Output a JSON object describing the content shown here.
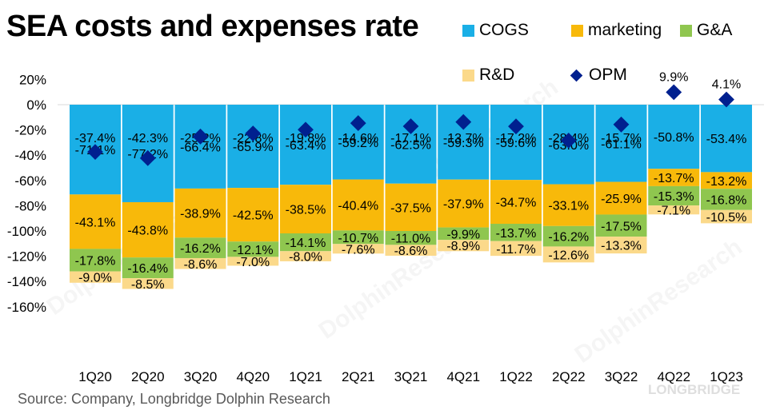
{
  "title": "SEA costs and expenses rate",
  "source": "Source: Company, Longbridge Dolphin Research",
  "watermark": {
    "text1": "DolphinResearch",
    "text2": "LONGBRIDGE"
  },
  "colors": {
    "cogs": "#1aafe6",
    "marketing": "#f8b90a",
    "ga": "#8fc64f",
    "rd": "#fbd98a",
    "opm": "#00208f"
  },
  "chart_data": {
    "type": "bar",
    "stacked": true,
    "title": "SEA costs and expenses rate",
    "categories": [
      "1Q20",
      "2Q20",
      "3Q20",
      "4Q20",
      "1Q21",
      "2Q21",
      "3Q21",
      "4Q21",
      "1Q22",
      "2Q22",
      "3Q22",
      "4Q22",
      "1Q23"
    ],
    "series": [
      {
        "name": "COGS",
        "values": [
          -71.1,
          -77.2,
          -66.4,
          -65.9,
          -63.4,
          -59.2,
          -62.5,
          -59.3,
          -59.6,
          -63.0,
          -61.1,
          -50.8,
          -53.4
        ]
      },
      {
        "name": "marketing",
        "values": [
          -43.1,
          -43.8,
          -38.9,
          -42.5,
          -38.5,
          -40.4,
          -37.5,
          -37.9,
          -34.7,
          -33.1,
          -25.9,
          -13.7,
          -13.2
        ]
      },
      {
        "name": "G&A",
        "values": [
          -17.8,
          -16.4,
          -16.2,
          -12.1,
          -14.1,
          -10.7,
          -11.0,
          -9.9,
          -13.7,
          -16.2,
          -17.5,
          -15.3,
          -16.8
        ]
      },
      {
        "name": "R&D",
        "values": [
          -9.0,
          -8.5,
          -8.6,
          -7.0,
          -8.0,
          -7.6,
          -8.6,
          -8.9,
          -11.7,
          -12.6,
          -13.3,
          -7.1,
          -10.5
        ]
      },
      {
        "name": "OPM",
        "type": "scatter",
        "values": [
          -37.4,
          -42.3,
          -25.2,
          -22.8,
          -19.8,
          -14.6,
          -17.1,
          -13.7,
          -17.2,
          -28.4,
          -15.7,
          9.9,
          4.1
        ]
      }
    ],
    "ylim": [
      -160,
      20
    ],
    "yticks": [
      20,
      0,
      -20,
      -40,
      -60,
      -80,
      -100,
      -120,
      -140,
      -160
    ],
    "ytick_labels": [
      "20%",
      "0%",
      "-20%",
      "-40%",
      "-60%",
      "-80%",
      "-100%",
      "-120%",
      "-140%",
      "-160%"
    ],
    "legend_position": "top-right",
    "grid": false
  }
}
